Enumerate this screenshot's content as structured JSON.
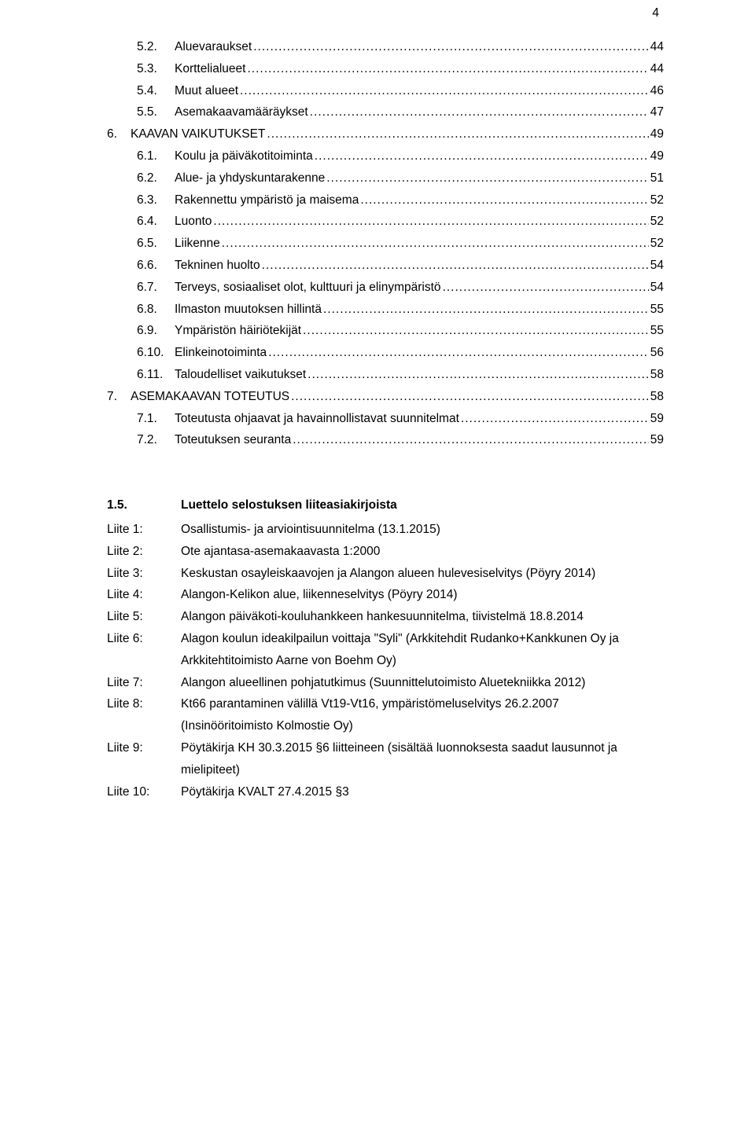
{
  "pageNumber": "4",
  "toc": [
    {
      "indent": 1,
      "num": "5.2.",
      "title": "Aluevaraukset",
      "page": "44"
    },
    {
      "indent": 1,
      "num": "5.3.",
      "title": "Korttelialueet",
      "page": "44"
    },
    {
      "indent": 1,
      "num": "5.4.",
      "title": "Muut alueet",
      "page": "46"
    },
    {
      "indent": 1,
      "num": "5.5.",
      "title": "Asemakaavamääräykset",
      "page": "47"
    },
    {
      "indent": 0,
      "num": "6.",
      "title": "KAAVAN VAIKUTUKSET",
      "page": "49"
    },
    {
      "indent": 1,
      "num": "6.1.",
      "title": "Koulu ja päiväkotitoiminta",
      "page": "49"
    },
    {
      "indent": 1,
      "num": "6.2.",
      "title": "Alue- ja yhdyskuntarakenne",
      "page": "51"
    },
    {
      "indent": 1,
      "num": "6.3.",
      "title": "Rakennettu ympäristö ja maisema",
      "page": "52"
    },
    {
      "indent": 1,
      "num": "6.4.",
      "title": "Luonto",
      "page": "52"
    },
    {
      "indent": 1,
      "num": "6.5.",
      "title": "Liikenne",
      "page": "52"
    },
    {
      "indent": 1,
      "num": "6.6.",
      "title": "Tekninen huolto",
      "page": "54"
    },
    {
      "indent": 1,
      "num": "6.7.",
      "title": "Terveys, sosiaaliset olot, kulttuuri ja elinympäristö",
      "page": "54"
    },
    {
      "indent": 1,
      "num": "6.8.",
      "title": "Ilmaston muutoksen hillintä",
      "page": "55"
    },
    {
      "indent": 1,
      "num": "6.9.",
      "title": "Ympäristön häiriötekijät",
      "page": "55"
    },
    {
      "indent": 1,
      "num": "6.10.",
      "title": "Elinkeinotoiminta",
      "page": "56"
    },
    {
      "indent": 1,
      "num": "6.11.",
      "title": "Taloudelliset vaikutukset",
      "page": "58"
    },
    {
      "indent": 0,
      "num": "7.",
      "title": "ASEMAKAAVAN TOTEUTUS",
      "page": "58"
    },
    {
      "indent": 1,
      "num": "7.1.",
      "title": "Toteutusta ohjaavat ja havainnollistavat suunnitelmat",
      "page": "59"
    },
    {
      "indent": 1,
      "num": "7.2.",
      "title": "Toteutuksen seuranta",
      "page": "59"
    }
  ],
  "appendixHeading": {
    "num": "1.5.",
    "title": "Luettelo selostuksen liiteasiakirjoista"
  },
  "appendices": [
    {
      "key": "Liite 1:",
      "lines": [
        "Osallistumis- ja arviointisuunnitelma (13.1.2015)"
      ]
    },
    {
      "key": "Liite 2:",
      "lines": [
        "Ote ajantasa-asemakaavasta 1:2000"
      ]
    },
    {
      "key": "Liite 3:",
      "lines": [
        "Keskustan osayleiskaavojen ja Alangon alueen hulevesiselvitys (Pöyry 2014)"
      ]
    },
    {
      "key": "Liite 4:",
      "lines": [
        "Alangon-Kelikon alue, liikenneselvitys (Pöyry 2014)"
      ]
    },
    {
      "key": "Liite 5:",
      "lines": [
        "Alangon päiväkoti-kouluhankkeen hankesuunnitelma, tiivistelmä 18.8.2014"
      ]
    },
    {
      "key": "Liite 6:",
      "lines": [
        "Alagon koulun ideakilpailun voittaja \"Syli\" (Arkkitehdit Rudanko+Kankkunen Oy ja",
        "Arkkitehtitoimisto Aarne von Boehm Oy)"
      ]
    },
    {
      "key": "Liite 7:",
      "lines": [
        "Alangon alueellinen pohjatutkimus (Suunnittelutoimisto Aluetekniikka 2012)"
      ]
    },
    {
      "key": "Liite 8:",
      "lines": [
        "Kt66 parantaminen välillä Vt19-Vt16, ympäristömeluselvitys 26.2.2007",
        "(Insinööritoimisto Kolmostie Oy)"
      ]
    },
    {
      "key": "Liite 9:",
      "lines": [
        "Pöytäkirja KH 30.3.2015 §6 liitteineen (sisältää luonnoksesta saadut lausunnot ja",
        "mielipiteet)"
      ]
    },
    {
      "key": "Liite 10:",
      "lines": [
        "Pöytäkirja KVALT 27.4.2015 §3"
      ]
    }
  ]
}
